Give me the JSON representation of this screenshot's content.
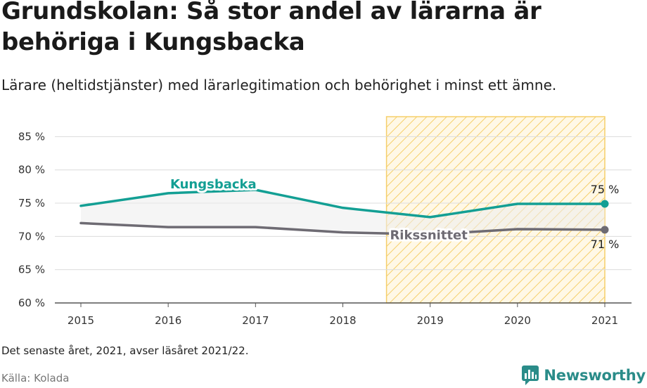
{
  "title": "Grundskolan: Så stor andel av lärarna är behöriga i Kungsbacka",
  "subtitle": "Lärare (heltidstjänster) med lärarlegitimation och behörighet i minst ett ämne.",
  "note": "Det senaste året, 2021, avser läsåret 2021/22.",
  "source": "Källa: Kolada",
  "brand": "Newsworthy",
  "chart_data": {
    "type": "line",
    "x": [
      2015,
      2016,
      2017,
      2018,
      2019,
      2020,
      2021
    ],
    "x_tick_labels": [
      "2015",
      "2016",
      "2017",
      "2018",
      "2019",
      "2020",
      "2021"
    ],
    "y_ticks": [
      60,
      65,
      70,
      75,
      80,
      85
    ],
    "y_tick_labels": [
      "60 %",
      "65 %",
      "70 %",
      "75 %",
      "80 %",
      "85 %"
    ],
    "ylim": [
      60,
      88
    ],
    "grid": true,
    "highlight_range": [
      2018.5,
      2021
    ],
    "series": [
      {
        "name": "Kungsbacka",
        "values": [
          74.6,
          76.5,
          77.0,
          74.3,
          72.9,
          74.9,
          74.9
        ],
        "color": "#139f94",
        "end_label": "75 %"
      },
      {
        "name": "Rikssnittet",
        "values": [
          72.0,
          71.4,
          71.4,
          70.6,
          70.3,
          71.1,
          71.0
        ],
        "color": "#6e6b73",
        "end_label": "71 %"
      }
    ]
  }
}
